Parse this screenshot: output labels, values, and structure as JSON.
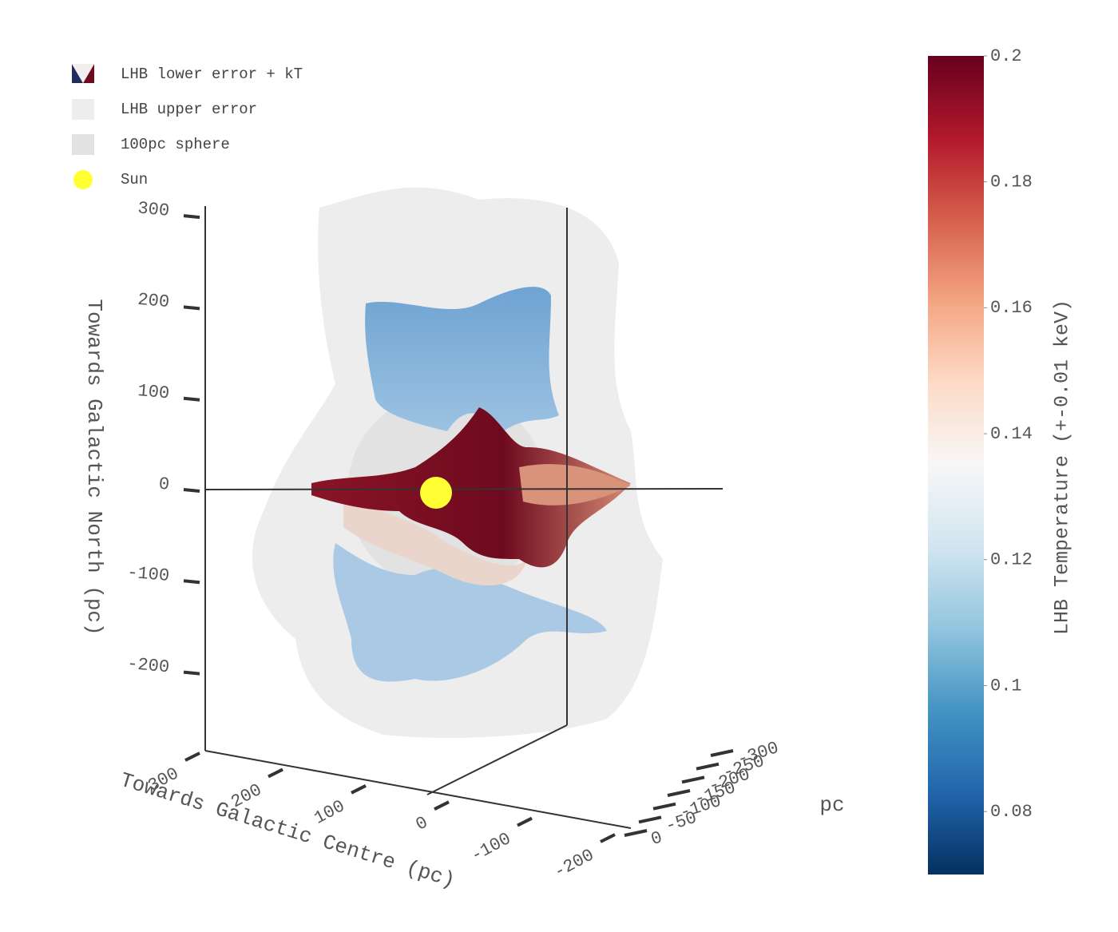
{
  "chart_data": {
    "type": "surface3d",
    "legend": [
      {
        "name": "LHB lower error + kT"
      },
      {
        "name": "LHB upper error",
        "color": "#ededed"
      },
      {
        "name": "100pc sphere",
        "color": "#e2e2e2"
      },
      {
        "name": "Sun",
        "color": "#ffff33"
      }
    ],
    "zaxis_title": "Towards Galactic North (pc)",
    "zlim": [
      -300,
      300
    ],
    "zticks": [
      300,
      200,
      100,
      0,
      -100,
      -200
    ],
    "xaxis_title": "Towards Galactic Centre (pc)",
    "xlim": [
      300,
      -250
    ],
    "xticks": [
      300,
      200,
      100,
      0,
      -100,
      -200
    ],
    "yaxis_title": "pc",
    "ylim": [
      0,
      -300
    ],
    "yticks": [
      0,
      -50,
      -100,
      -150,
      -200,
      -250,
      -300
    ],
    "colorbar": {
      "title": "LHB Temperature (+-0.01 keV)",
      "clim": [
        0.07,
        0.2
      ],
      "ticks": [
        0.08,
        0.1,
        0.12,
        0.14,
        0.16,
        0.18,
        0.2
      ],
      "colorscale": [
        "#053061",
        "#2166ac",
        "#4393c3",
        "#92c5de",
        "#d1e5f0",
        "#f7f7f7",
        "#fddbc7",
        "#f4a582",
        "#d6604d",
        "#b2182b",
        "#67001f"
      ]
    }
  }
}
